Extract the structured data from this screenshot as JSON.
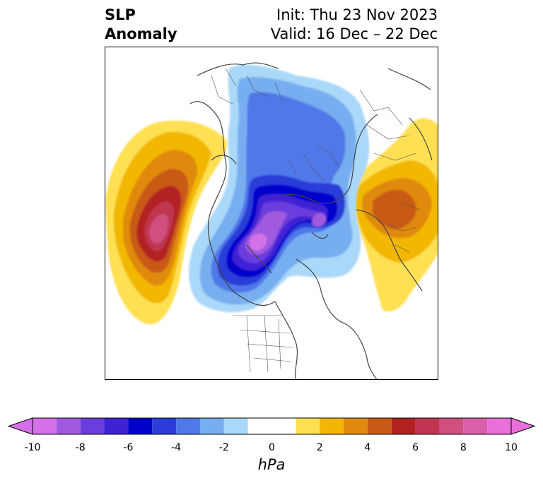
{
  "title": {
    "variable_line1": "SLP",
    "variable_line2": "Anomaly",
    "init": "Init: Thu 23 Nov 2023",
    "valid": "Valid: 16 Dec – 22 Dec"
  },
  "colorbar": {
    "unit": "hPa",
    "ticks": [
      "-10",
      "-8",
      "-6",
      "-4",
      "-2",
      "0",
      "2",
      "4",
      "6",
      "8",
      "10"
    ],
    "levels": [
      -10,
      -9,
      -8,
      -7,
      -6,
      -5,
      -4,
      -3,
      -2,
      -1,
      1,
      2,
      3,
      4,
      5,
      6,
      7,
      8,
      9,
      10
    ],
    "colors": [
      "#d470e8",
      "#a05ae0",
      "#6a3ddc",
      "#3f22d4",
      "#0000cc",
      "#2c3cd8",
      "#4f78e8",
      "#76aef0",
      "#aad8f8",
      "#ffffff",
      "#ffe052",
      "#f2b705",
      "#e08a10",
      "#c85a18",
      "#b22222",
      "#c03650",
      "#d05080",
      "#d860a8",
      "#e870d8"
    ],
    "extend": "both"
  },
  "map": {
    "projection": "north polar stereographic",
    "features": [
      "coastlines",
      "country borders",
      "state/province borders"
    ]
  }
}
